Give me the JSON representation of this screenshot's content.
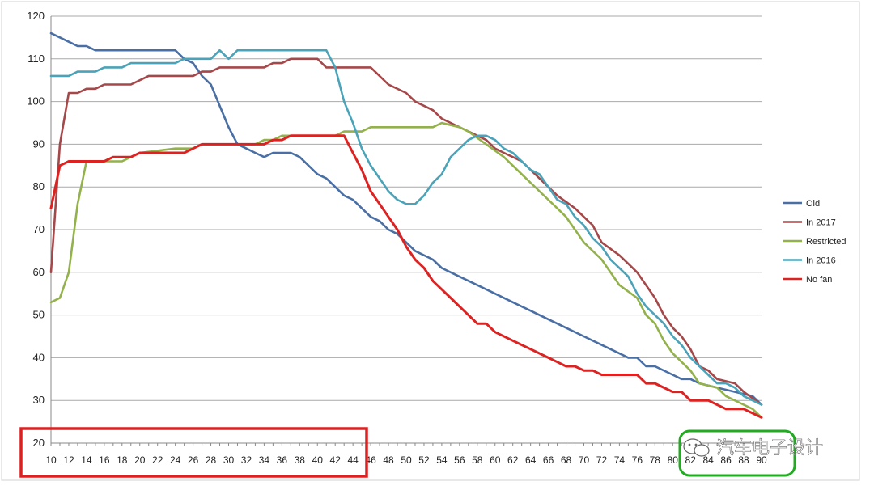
{
  "chart_data": {
    "type": "line",
    "title": "",
    "xlabel": "",
    "ylabel": "",
    "xlim": [
      10,
      90
    ],
    "ylim": [
      20,
      120
    ],
    "y_ticks": [
      20,
      30,
      40,
      50,
      60,
      70,
      80,
      90,
      100,
      110,
      120
    ],
    "x_ticks": [
      10,
      12,
      14,
      16,
      18,
      20,
      22,
      24,
      26,
      28,
      30,
      32,
      34,
      36,
      38,
      40,
      42,
      44,
      46,
      48,
      50,
      52,
      54,
      56,
      58,
      60,
      62,
      64,
      66,
      68,
      70,
      72,
      74,
      76,
      78,
      80,
      82,
      84,
      86,
      88,
      90
    ],
    "grid": "horizontal",
    "legend_position": "right",
    "series": [
      {
        "name": "Old",
        "color": "#4a6fa5",
        "points": [
          [
            10,
            116
          ],
          [
            12,
            114
          ],
          [
            13,
            113
          ],
          [
            14,
            113
          ],
          [
            15,
            112
          ],
          [
            20,
            112
          ],
          [
            24,
            112
          ],
          [
            25,
            110
          ],
          [
            26,
            109
          ],
          [
            27,
            106
          ],
          [
            28,
            104
          ],
          [
            29,
            99
          ],
          [
            30,
            94
          ],
          [
            31,
            90
          ],
          [
            32,
            89
          ],
          [
            33,
            88
          ],
          [
            34,
            87
          ],
          [
            35,
            88
          ],
          [
            37,
            88
          ],
          [
            38,
            87
          ],
          [
            39,
            85
          ],
          [
            40,
            83
          ],
          [
            41,
            82
          ],
          [
            42,
            80
          ],
          [
            43,
            78
          ],
          [
            44,
            77
          ],
          [
            45,
            75
          ],
          [
            46,
            73
          ],
          [
            47,
            72
          ],
          [
            48,
            70
          ],
          [
            49,
            69
          ],
          [
            50,
            67
          ],
          [
            51,
            65
          ],
          [
            53,
            63
          ],
          [
            54,
            61
          ],
          [
            56,
            59
          ],
          [
            58,
            57
          ],
          [
            60,
            55
          ],
          [
            62,
            53
          ],
          [
            64,
            51
          ],
          [
            66,
            49
          ],
          [
            67,
            48
          ],
          [
            68,
            47
          ],
          [
            70,
            45
          ],
          [
            72,
            43
          ],
          [
            74,
            41
          ],
          [
            75,
            40
          ],
          [
            76,
            40
          ],
          [
            77,
            38
          ],
          [
            78,
            38
          ],
          [
            80,
            36
          ],
          [
            81,
            35
          ],
          [
            82,
            35
          ],
          [
            83,
            34
          ],
          [
            85,
            33
          ],
          [
            87,
            32
          ],
          [
            89,
            31
          ],
          [
            90,
            29
          ]
        ]
      },
      {
        "name": "In 2017",
        "color": "#a5484a",
        "points": [
          [
            10,
            60
          ],
          [
            11,
            90
          ],
          [
            12,
            102
          ],
          [
            13,
            102
          ],
          [
            14,
            103
          ],
          [
            15,
            103
          ],
          [
            16,
            104
          ],
          [
            19,
            104
          ],
          [
            21,
            106
          ],
          [
            26,
            106
          ],
          [
            27,
            107
          ],
          [
            28,
            107
          ],
          [
            29,
            108
          ],
          [
            34,
            108
          ],
          [
            35,
            109
          ],
          [
            36,
            109
          ],
          [
            37,
            110
          ],
          [
            40,
            110
          ],
          [
            41,
            108
          ],
          [
            46,
            108
          ],
          [
            48,
            104
          ],
          [
            50,
            102
          ],
          [
            51,
            100
          ],
          [
            52,
            99
          ],
          [
            53,
            98
          ],
          [
            54,
            96
          ],
          [
            55,
            95
          ],
          [
            57,
            93
          ],
          [
            59,
            91
          ],
          [
            60,
            89
          ],
          [
            61,
            88
          ],
          [
            63,
            86
          ],
          [
            65,
            82
          ],
          [
            67,
            78
          ],
          [
            69,
            75
          ],
          [
            70,
            73
          ],
          [
            71,
            71
          ],
          [
            72,
            67
          ],
          [
            74,
            64
          ],
          [
            75,
            62
          ],
          [
            76,
            60
          ],
          [
            77,
            57
          ],
          [
            78,
            54
          ],
          [
            79,
            50
          ],
          [
            80,
            47
          ],
          [
            81,
            45
          ],
          [
            82,
            42
          ],
          [
            83,
            38
          ],
          [
            84,
            37
          ],
          [
            85,
            35
          ],
          [
            87,
            34
          ],
          [
            88,
            32
          ],
          [
            90,
            29
          ]
        ]
      },
      {
        "name": "Restricted",
        "color": "#93b24c",
        "points": [
          [
            10,
            53
          ],
          [
            11,
            54
          ],
          [
            12,
            60
          ],
          [
            13,
            76
          ],
          [
            14,
            86
          ],
          [
            15,
            86
          ],
          [
            18,
            86
          ],
          [
            19,
            87
          ],
          [
            20,
            88
          ],
          [
            24,
            89
          ],
          [
            26,
            89
          ],
          [
            27,
            90
          ],
          [
            33,
            90
          ],
          [
            34,
            91
          ],
          [
            35,
            91
          ],
          [
            36,
            92
          ],
          [
            38,
            92
          ],
          [
            42,
            92
          ],
          [
            43,
            93
          ],
          [
            45,
            93
          ],
          [
            46,
            94
          ],
          [
            53,
            94
          ],
          [
            54,
            95
          ],
          [
            56,
            94
          ],
          [
            57,
            93
          ],
          [
            59,
            90
          ],
          [
            61,
            87
          ],
          [
            63,
            83
          ],
          [
            65,
            79
          ],
          [
            67,
            75
          ],
          [
            68,
            73
          ],
          [
            69,
            70
          ],
          [
            70,
            67
          ],
          [
            72,
            63
          ],
          [
            73,
            60
          ],
          [
            74,
            57
          ],
          [
            76,
            54
          ],
          [
            77,
            50
          ],
          [
            78,
            48
          ],
          [
            79,
            44
          ],
          [
            80,
            41
          ],
          [
            82,
            37
          ],
          [
            83,
            34
          ],
          [
            85,
            33
          ],
          [
            86,
            31
          ],
          [
            88,
            29
          ],
          [
            89,
            28
          ],
          [
            90,
            26
          ]
        ]
      },
      {
        "name": "In 2016",
        "color": "#4aa3b8",
        "points": [
          [
            10,
            106
          ],
          [
            11,
            106
          ],
          [
            12,
            106
          ],
          [
            13,
            107
          ],
          [
            15,
            107
          ],
          [
            16,
            108
          ],
          [
            18,
            108
          ],
          [
            19,
            109
          ],
          [
            24,
            109
          ],
          [
            25,
            110
          ],
          [
            28,
            110
          ],
          [
            29,
            112
          ],
          [
            30,
            110
          ],
          [
            31,
            112
          ],
          [
            40,
            112
          ],
          [
            41,
            112
          ],
          [
            42,
            108
          ],
          [
            43,
            100
          ],
          [
            44,
            95
          ],
          [
            45,
            89
          ],
          [
            46,
            85
          ],
          [
            47,
            82
          ],
          [
            48,
            79
          ],
          [
            49,
            77
          ],
          [
            50,
            76
          ],
          [
            51,
            76
          ],
          [
            52,
            78
          ],
          [
            53,
            81
          ],
          [
            54,
            83
          ],
          [
            55,
            87
          ],
          [
            56,
            89
          ],
          [
            57,
            91
          ],
          [
            58,
            92
          ],
          [
            59,
            92
          ],
          [
            60,
            91
          ],
          [
            61,
            89
          ],
          [
            62,
            88
          ],
          [
            63,
            86
          ],
          [
            64,
            84
          ],
          [
            65,
            83
          ],
          [
            66,
            80
          ],
          [
            67,
            77
          ],
          [
            68,
            76
          ],
          [
            69,
            73
          ],
          [
            70,
            71
          ],
          [
            71,
            68
          ],
          [
            72,
            66
          ],
          [
            73,
            63
          ],
          [
            74,
            61
          ],
          [
            75,
            59
          ],
          [
            76,
            55
          ],
          [
            77,
            52
          ],
          [
            78,
            50
          ],
          [
            79,
            48
          ],
          [
            80,
            45
          ],
          [
            81,
            43
          ],
          [
            82,
            40
          ],
          [
            83,
            38
          ],
          [
            84,
            36
          ],
          [
            85,
            34
          ],
          [
            86,
            34
          ],
          [
            87,
            33
          ],
          [
            88,
            31
          ],
          [
            89,
            30
          ],
          [
            90,
            29
          ]
        ]
      },
      {
        "name": "No fan",
        "color": "#dd2222",
        "points": [
          [
            10,
            75
          ],
          [
            11,
            85
          ],
          [
            12,
            86
          ],
          [
            15,
            86
          ],
          [
            16,
            86
          ],
          [
            17,
            87
          ],
          [
            19,
            87
          ],
          [
            20,
            88
          ],
          [
            25,
            88
          ],
          [
            26,
            89
          ],
          [
            27,
            90
          ],
          [
            34,
            90
          ],
          [
            35,
            91
          ],
          [
            36,
            91
          ],
          [
            37,
            92
          ],
          [
            43,
            92
          ],
          [
            44,
            88
          ],
          [
            45,
            84
          ],
          [
            46,
            79
          ],
          [
            47,
            76
          ],
          [
            48,
            73
          ],
          [
            49,
            70
          ],
          [
            50,
            66
          ],
          [
            51,
            63
          ],
          [
            52,
            61
          ],
          [
            53,
            58
          ],
          [
            54,
            56
          ],
          [
            55,
            54
          ],
          [
            56,
            52
          ],
          [
            57,
            50
          ],
          [
            58,
            48
          ],
          [
            59,
            48
          ],
          [
            60,
            46
          ],
          [
            62,
            44
          ],
          [
            64,
            42
          ],
          [
            66,
            40
          ],
          [
            67,
            39
          ],
          [
            68,
            38
          ],
          [
            69,
            38
          ],
          [
            70,
            37
          ],
          [
            71,
            37
          ],
          [
            72,
            36
          ],
          [
            76,
            36
          ],
          [
            77,
            34
          ],
          [
            78,
            34
          ],
          [
            79,
            33
          ],
          [
            80,
            32
          ],
          [
            81,
            32
          ],
          [
            82,
            30
          ],
          [
            84,
            30
          ],
          [
            85,
            29
          ],
          [
            86,
            28
          ],
          [
            88,
            28
          ],
          [
            89,
            27
          ],
          [
            90,
            26
          ]
        ]
      }
    ],
    "annotations": [
      {
        "type": "highlight-box",
        "color": "#e02020",
        "covers_x": [
          10,
          44
        ]
      },
      {
        "type": "highlight-box",
        "color": "#22aa22",
        "covers_x": [
          82,
          90
        ]
      }
    ]
  },
  "watermark": {
    "text": "汽车电子设计",
    "icon": "wechat-icon"
  }
}
